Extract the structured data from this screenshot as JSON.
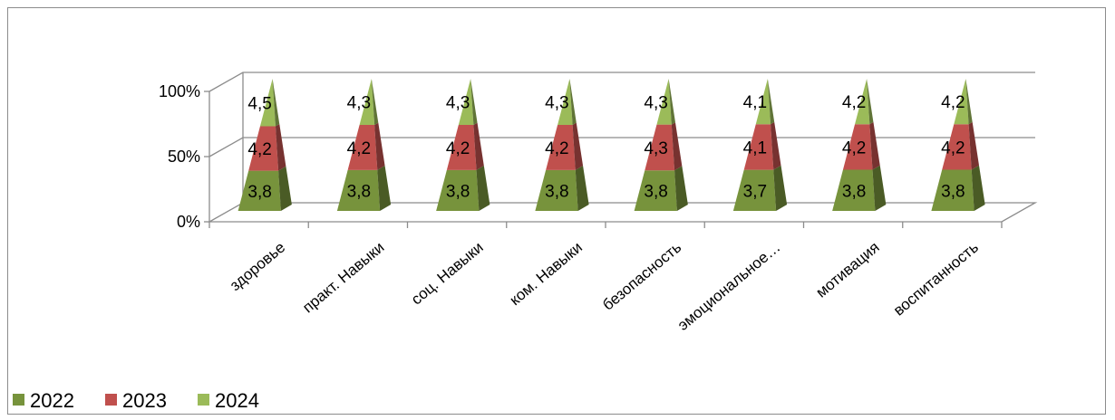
{
  "chart_data": {
    "type": "bar",
    "style": "stacked-100-percent-3d-pyramid",
    "categories": [
      "здоровье",
      "практ. Навыки",
      "соц. Навыки",
      "ком. Навыки",
      "безопасность",
      "эмоциональное…",
      "мотивация",
      "воспитанность"
    ],
    "series": [
      {
        "name": "2022",
        "color": "#77933c",
        "values": [
          3.8,
          3.8,
          3.8,
          3.8,
          3.8,
          3.7,
          3.8,
          3.8
        ],
        "labels": [
          "3,8",
          "3,8",
          "3,8",
          "3,8",
          "3,8",
          "3,7",
          "3,8",
          "3,8"
        ]
      },
      {
        "name": "2023",
        "color": "#c0504d",
        "values": [
          4.2,
          4.2,
          4.2,
          4.2,
          4.3,
          4.1,
          4.2,
          4.2
        ],
        "labels": [
          "4,2",
          "4,2",
          "4,2",
          "4,2",
          "4,3",
          "4,1",
          "4,2",
          "4,2"
        ]
      },
      {
        "name": "2024",
        "color": "#9bbb59",
        "values": [
          4.5,
          4.3,
          4.3,
          4.3,
          4.3,
          4.1,
          4.2,
          4.2
        ],
        "labels": [
          "4,5",
          "4,3",
          "4,3",
          "4,3",
          "4,3",
          "4,1",
          "4,2",
          "4,2"
        ]
      }
    ],
    "yticks": [
      "0%",
      "50%",
      "100%"
    ],
    "ylim": [
      0,
      100
    ],
    "grid": true,
    "legend": "bottom-left",
    "title": "",
    "xlabel": "",
    "ylabel": ""
  }
}
